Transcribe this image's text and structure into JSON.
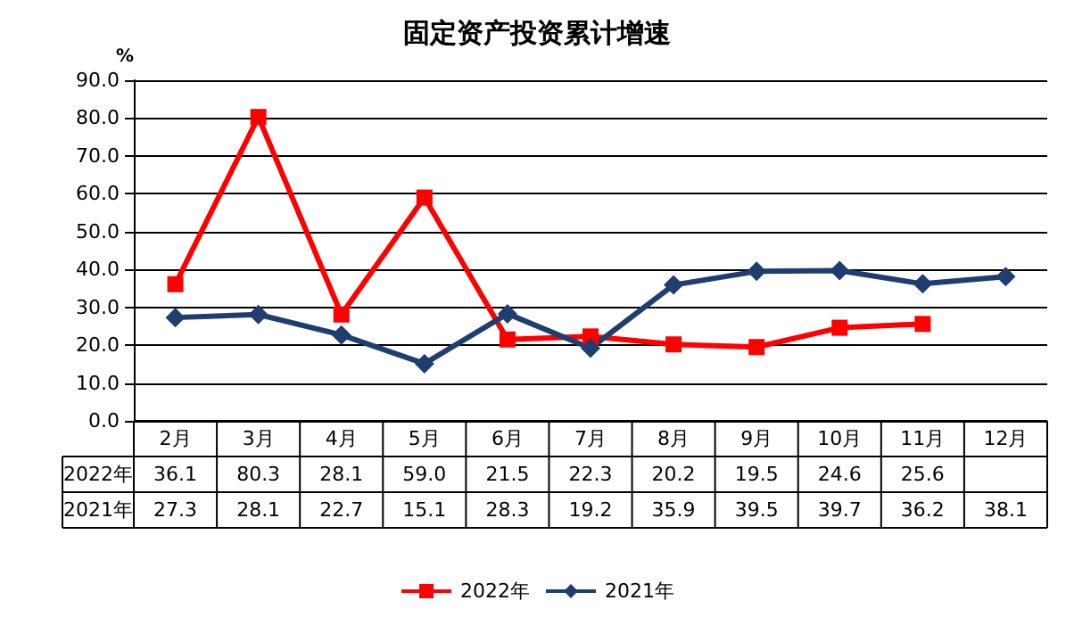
{
  "chart_data": {
    "type": "line",
    "title": "固定资产投资累计增速",
    "ylabel": "%",
    "categories": [
      "2月",
      "3月",
      "4月",
      "5月",
      "6月",
      "7月",
      "8月",
      "9月",
      "10月",
      "11月",
      "12月"
    ],
    "series": [
      {
        "name": "2022年",
        "color": "#ff0000",
        "marker": "square",
        "values": [
          36.1,
          80.3,
          28.1,
          59.0,
          21.5,
          22.3,
          20.2,
          19.5,
          24.6,
          25.6,
          null
        ],
        "value_labels": [
          "36.1",
          "80.3",
          "28.1",
          "59.0",
          "21.5",
          "22.3",
          "20.2",
          "19.5",
          "24.6",
          "25.6",
          null
        ]
      },
      {
        "name": "2021年",
        "color": "#1f3d6e",
        "marker": "diamond",
        "values": [
          27.3,
          28.1,
          22.7,
          15.1,
          28.3,
          19.2,
          35.9,
          39.5,
          39.7,
          36.2,
          38.1
        ],
        "value_labels": [
          "27.3",
          "28.1",
          "22.7",
          "15.1",
          "28.3",
          "19.2",
          "35.9",
          "39.5",
          "39.7",
          "36.2",
          "38.1"
        ]
      }
    ],
    "ylim": [
      0,
      90
    ],
    "yticks": [
      {
        "value": 0,
        "label": "0.0"
      },
      {
        "value": 10,
        "label": "10.0"
      },
      {
        "value": 20,
        "label": "20.0"
      },
      {
        "value": 30,
        "label": "30.0"
      },
      {
        "value": 40,
        "label": "40.0"
      },
      {
        "value": 50,
        "label": "50.0"
      },
      {
        "value": 60,
        "label": "60.0"
      },
      {
        "value": 70,
        "label": "70.0"
      },
      {
        "value": 80,
        "label": "80.0"
      },
      {
        "value": 90,
        "label": "90.0"
      }
    ],
    "grid": "y",
    "legend": "bottom",
    "line_style": "solid"
  }
}
